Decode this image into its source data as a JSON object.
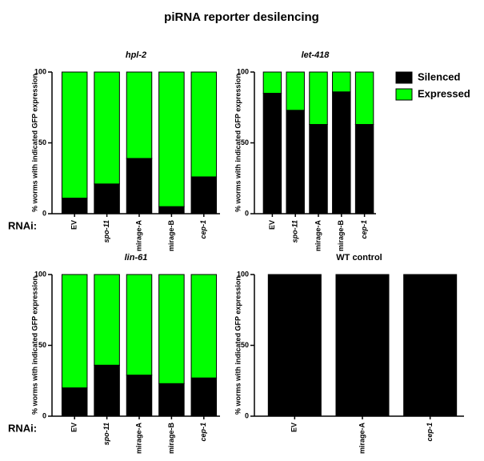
{
  "title": "piRNA reporter desilencing",
  "chart_data": [
    {
      "type": "bar",
      "stacked": true,
      "title": "hpl-2",
      "ylabel": "% worms with indicated GFP expression",
      "xlabel": "RNAi:",
      "categories": [
        "EV",
        "spo-11",
        "mirage-A",
        "mirage-B",
        "cep-1"
      ],
      "series": [
        {
          "name": "Silenced",
          "color": "#000000",
          "values": [
            11,
            21,
            39,
            5,
            26
          ]
        },
        {
          "name": "Expressed",
          "color": "#00ff00",
          "values": [
            89,
            79,
            61,
            95,
            74
          ]
        }
      ],
      "ylim": [
        0,
        100
      ],
      "yticks": [
        0,
        50,
        100
      ]
    },
    {
      "type": "bar",
      "stacked": true,
      "title": "let-418",
      "ylabel": "% worms with indicated GFP expression",
      "legend": "right",
      "categories": [
        "EV",
        "spo-11",
        "mirage-A",
        "mirage-B",
        "cep-1"
      ],
      "series": [
        {
          "name": "Silenced",
          "color": "#000000",
          "values": [
            85,
            73,
            63,
            86,
            63
          ]
        },
        {
          "name": "Expressed",
          "color": "#00ff00",
          "values": [
            15,
            27,
            37,
            14,
            37
          ]
        }
      ],
      "ylim": [
        0,
        100
      ],
      "yticks": [
        0,
        50,
        100
      ]
    },
    {
      "type": "bar",
      "stacked": true,
      "title": "lin-61",
      "ylabel": "% worms with indicated GFP expression",
      "xlabel": "RNAi:",
      "categories": [
        "EV",
        "spo-11",
        "mirage-A",
        "mirage-B",
        "cep-1"
      ],
      "series": [
        {
          "name": "Silenced",
          "color": "#000000",
          "values": [
            20,
            36,
            29,
            23,
            27
          ]
        },
        {
          "name": "Expressed",
          "color": "#00ff00",
          "values": [
            80,
            64,
            71,
            77,
            73
          ]
        }
      ],
      "ylim": [
        0,
        100
      ],
      "yticks": [
        0,
        50,
        100
      ]
    },
    {
      "type": "bar",
      "stacked": true,
      "title": "WT control",
      "ylabel": "% worms with indicated GFP expression",
      "categories": [
        "EV",
        "mirage-A",
        "cep-1"
      ],
      "series": [
        {
          "name": "Silenced",
          "color": "#000000",
          "values": [
            100,
            100,
            100
          ]
        },
        {
          "name": "Expressed",
          "color": "#00ff00",
          "values": [
            0,
            0,
            0
          ]
        }
      ],
      "ylim": [
        0,
        100
      ],
      "yticks": [
        0,
        50,
        100
      ]
    }
  ]
}
